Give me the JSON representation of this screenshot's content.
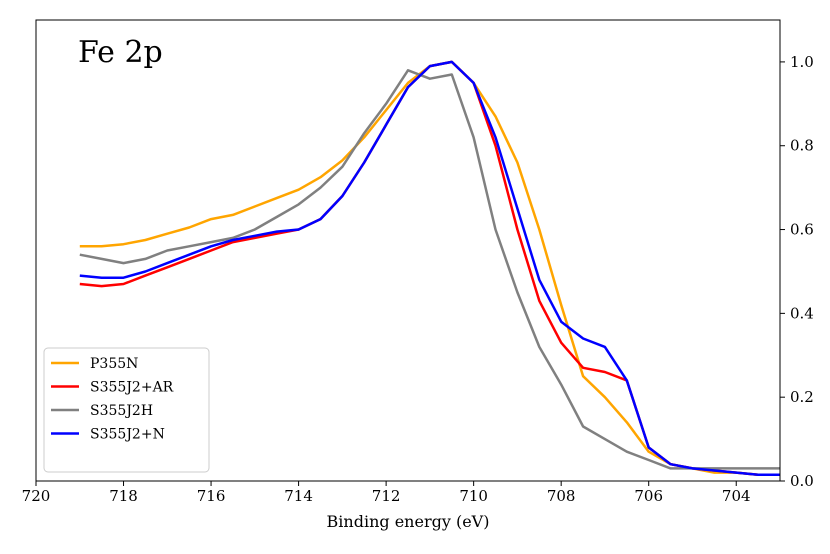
{
  "chart_data": {
    "type": "line",
    "title": "",
    "annotation": "Fe 2p",
    "xlabel": "Binding energy (eV)",
    "ylabel": "",
    "xlim": [
      720,
      703
    ],
    "ylim": [
      0.0,
      1.1
    ],
    "x_inverted": true,
    "y_axis_side": "right",
    "grid": false,
    "legend_position": "bottom-left",
    "x_ticks": [
      720,
      718,
      716,
      714,
      712,
      710,
      708,
      706,
      704
    ],
    "x_tick_labels": [
      "720",
      "718",
      "716",
      "714",
      "712",
      "710",
      "708",
      "706",
      "704"
    ],
    "y_ticks": [
      0.0,
      0.2,
      0.4,
      0.6,
      0.8,
      1.0
    ],
    "y_tick_labels": [
      "0.0",
      "0.2",
      "0.4",
      "0.6",
      "0.8",
      "1.0"
    ],
    "series": [
      {
        "name": "P355N",
        "color": "#FFA500",
        "x": [
          719,
          718.5,
          718,
          717.5,
          717,
          716.5,
          716,
          715.5,
          715,
          714.5,
          714,
          713.5,
          713,
          712.5,
          712,
          711.5,
          711,
          710.5,
          710,
          709.5,
          709,
          708.5,
          708,
          707.5,
          707,
          706.5,
          706,
          705.5,
          705,
          704.5,
          704,
          703.5,
          703
        ],
        "y": [
          0.56,
          0.56,
          0.565,
          0.575,
          0.59,
          0.605,
          0.625,
          0.635,
          0.655,
          0.675,
          0.695,
          0.725,
          0.765,
          0.82,
          0.885,
          0.95,
          0.99,
          1.0,
          0.95,
          0.87,
          0.76,
          0.6,
          0.42,
          0.25,
          0.2,
          0.14,
          0.07,
          0.04,
          0.03,
          0.02,
          0.02,
          0.015,
          0.015
        ]
      },
      {
        "name": "S355J2+AR",
        "color": "#FF0000",
        "x": [
          719,
          718.5,
          718,
          717.5,
          717,
          716.5,
          716,
          715.5,
          715,
          714.5,
          714,
          713.5,
          713,
          712.5,
          712,
          711.5,
          711,
          710.5,
          710,
          709.5,
          709,
          708.5,
          708,
          707.5,
          707,
          706.5,
          706,
          705.5,
          705,
          704.5,
          704,
          703.5,
          703
        ],
        "y": [
          0.47,
          0.465,
          0.47,
          0.49,
          0.51,
          0.53,
          0.55,
          0.57,
          0.58,
          0.59,
          0.6,
          0.625,
          0.68,
          0.76,
          0.85,
          0.94,
          0.99,
          1.0,
          0.95,
          0.8,
          0.6,
          0.43,
          0.33,
          0.27,
          0.26,
          0.24,
          0.08,
          0.04,
          0.03,
          0.025,
          0.02,
          0.015,
          0.015
        ]
      },
      {
        "name": "S355J2H",
        "color": "#808080",
        "x": [
          719,
          718.5,
          718,
          717.5,
          717,
          716.5,
          716,
          715.5,
          715,
          714.5,
          714,
          713.5,
          713,
          712.5,
          712,
          711.5,
          711,
          710.5,
          710,
          709.5,
          709,
          708.5,
          708,
          707.5,
          707,
          706.5,
          706,
          705.5,
          705,
          704.5,
          704,
          703.5,
          703
        ],
        "y": [
          0.54,
          0.53,
          0.52,
          0.53,
          0.55,
          0.56,
          0.57,
          0.58,
          0.6,
          0.63,
          0.66,
          0.7,
          0.75,
          0.83,
          0.9,
          0.98,
          0.96,
          0.97,
          0.82,
          0.6,
          0.45,
          0.32,
          0.23,
          0.13,
          0.1,
          0.07,
          0.05,
          0.03,
          0.03,
          0.03,
          0.03,
          0.03,
          0.03
        ]
      },
      {
        "name": "S355J2+N",
        "color": "#0000FF",
        "x": [
          719,
          718.5,
          718,
          717.5,
          717,
          716.5,
          716,
          715.5,
          715,
          714.5,
          714,
          713.5,
          713,
          712.5,
          712,
          711.5,
          711,
          710.5,
          710,
          709.5,
          709,
          708.5,
          708,
          707.5,
          707,
          706.5,
          706,
          705.5,
          705,
          704.5,
          704,
          703.5,
          703
        ],
        "y": [
          0.49,
          0.485,
          0.485,
          0.5,
          0.52,
          0.54,
          0.56,
          0.575,
          0.585,
          0.595,
          0.6,
          0.625,
          0.68,
          0.76,
          0.85,
          0.94,
          0.99,
          1.0,
          0.95,
          0.82,
          0.65,
          0.48,
          0.38,
          0.34,
          0.32,
          0.24,
          0.08,
          0.04,
          0.03,
          0.025,
          0.02,
          0.015,
          0.015
        ]
      }
    ]
  }
}
